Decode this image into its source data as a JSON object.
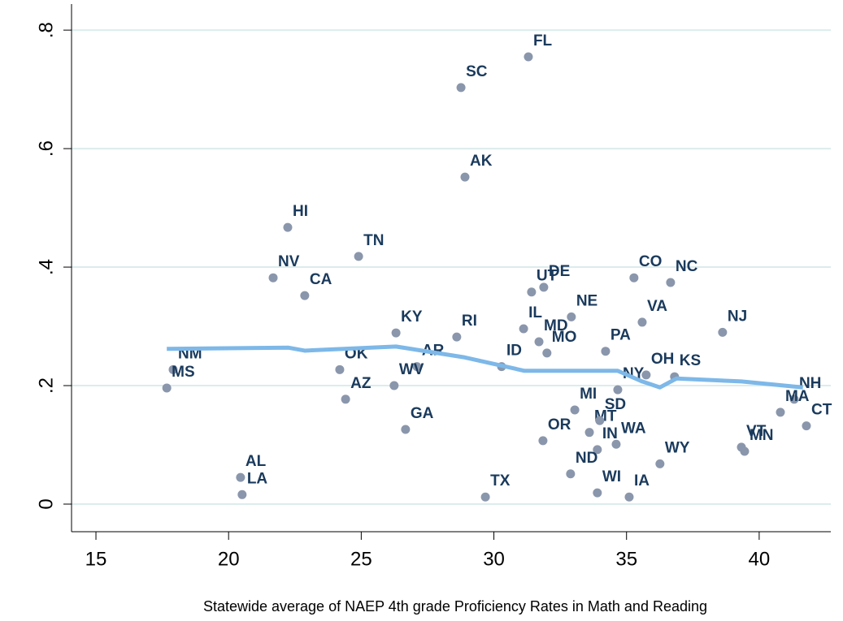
{
  "chart_data": {
    "type": "scatter",
    "x_label": "Statewide average of NAEP 4th grade Proficiency Rates in Math and Reading",
    "labels": [
      "FL",
      "SC",
      "AK",
      "HI",
      "TN",
      "NV",
      "CA",
      "UT",
      "DE",
      "CO",
      "NC",
      "NE",
      "VA",
      "KY",
      "RI",
      "IL",
      "MD",
      "MO",
      "PA",
      "NJ",
      "KS",
      "ID",
      "AR",
      "OK",
      "NM",
      "MS",
      "WV",
      "AZ",
      "OH",
      "NY",
      "GA",
      "MI",
      "MT",
      "SD",
      "OR",
      "IN",
      "WA",
      "ND",
      "WI",
      "IA",
      "TX",
      "WY",
      "AL",
      "LA",
      "VT",
      "MN",
      "NH",
      "MA",
      "CT"
    ],
    "x": [
      31.3,
      28.76,
      28.91,
      22.23,
      24.9,
      21.68,
      22.87,
      31.42,
      31.88,
      35.28,
      36.66,
      32.92,
      35.59,
      26.31,
      28.6,
      31.12,
      31.7,
      32.0,
      34.21,
      38.62,
      36.81,
      30.29,
      27.1,
      24.19,
      17.91,
      17.67,
      26.24,
      24.41,
      35.74,
      34.67,
      26.67,
      33.05,
      33.6,
      33.99,
      31.85,
      33.9,
      34.61,
      32.89,
      33.9,
      35.1,
      29.68,
      36.26,
      20.45,
      20.51,
      39.33,
      39.45,
      41.32,
      40.8,
      41.78
    ],
    "y": [
      0.755,
      0.703,
      0.552,
      0.467,
      0.418,
      0.382,
      0.352,
      0.358,
      0.366,
      0.382,
      0.374,
      0.316,
      0.307,
      0.289,
      0.282,
      0.296,
      0.274,
      0.255,
      0.258,
      0.29,
      0.215,
      0.232,
      0.232,
      0.227,
      0.227,
      0.196,
      0.2,
      0.177,
      0.218,
      0.193,
      0.126,
      0.159,
      0.121,
      0.141,
      0.107,
      0.092,
      0.101,
      0.051,
      0.019,
      0.012,
      0.012,
      0.068,
      0.045,
      0.016,
      0.096,
      0.089,
      0.177,
      0.155,
      0.132
    ],
    "point_color": "#8a96ab",
    "label_color": "#1a3a5c",
    "fit": {
      "x": [
        17.67,
        22.26,
        22.87,
        26.31,
        28.85,
        31.15,
        34.67,
        35.59,
        36.26,
        36.88,
        39.33,
        41.65
      ],
      "y": [
        0.262,
        0.264,
        0.259,
        0.266,
        0.248,
        0.225,
        0.225,
        0.207,
        0.197,
        0.212,
        0.207,
        0.197
      ],
      "color": "#7db8e8"
    },
    "xlim": [
      14.08,
      42.7
    ],
    "ylim": [
      -0.0466,
      0.844
    ],
    "xticks": [
      15,
      20,
      25,
      30,
      35,
      40
    ],
    "yticks": [
      0,
      {
        "value": 0.2,
        "label": ".2"
      },
      {
        "value": 0.4,
        "label": ".4"
      },
      {
        "value": 0.6,
        "label": ".6"
      },
      {
        "value": 0.8,
        "label": ".8"
      }
    ],
    "grid": true
  }
}
